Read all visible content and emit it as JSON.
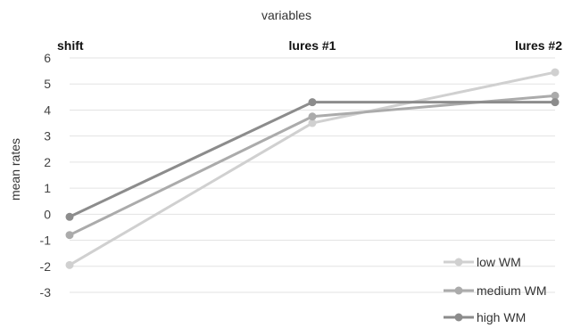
{
  "chart_data": {
    "type": "line",
    "title": "variables",
    "xlabel": "",
    "ylabel": "mean rates",
    "categories": [
      "shift",
      "lures #1",
      "lures #2"
    ],
    "ylim": [
      -3,
      6
    ],
    "yticks": [
      6,
      5,
      4,
      3,
      2,
      1,
      0,
      -1,
      -2,
      -3
    ],
    "grid": true,
    "legend_position": "bottom-right",
    "series": [
      {
        "name": "low WM",
        "color": "#d0d0d0",
        "values": [
          -1.95,
          3.5,
          5.45
        ]
      },
      {
        "name": "medium WM",
        "color": "#ababab",
        "values": [
          -0.8,
          3.75,
          4.55
        ]
      },
      {
        "name": "high WM",
        "color": "#8c8c8c",
        "values": [
          -0.1,
          4.3,
          4.3
        ]
      }
    ]
  }
}
